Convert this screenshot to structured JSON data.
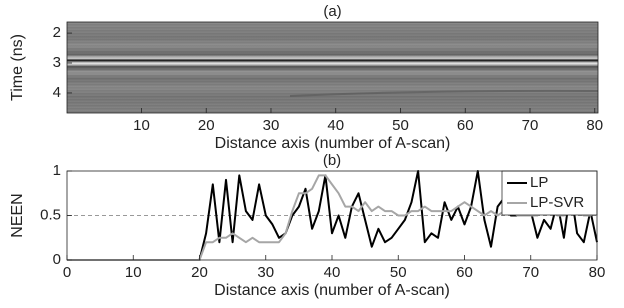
{
  "chart_data": [
    {
      "type": "image",
      "title": "(a)",
      "ylabel": "Time (ns)",
      "xlabel": "Distance axis (number of A-scan)",
      "xlim": [
        -1.5,
        80.5
      ],
      "ylim": [
        1.63,
        4.67
      ],
      "xticks": [
        10,
        20,
        30,
        40,
        50,
        60,
        70,
        80
      ],
      "yticks": [
        2,
        3,
        4
      ]
    },
    {
      "type": "line",
      "title": "(b)",
      "ylabel": "NEEN",
      "xlabel": "Distance axis (number of A-scan)",
      "xlim": [
        0,
        80
      ],
      "ylim": [
        0,
        1
      ],
      "xticks": [
        0,
        10,
        20,
        30,
        40,
        50,
        60,
        70,
        80
      ],
      "yticks": [
        0,
        0.5,
        1
      ],
      "hline": 0.5,
      "legend": "upper right",
      "x": [
        0,
        1,
        2,
        3,
        4,
        5,
        6,
        7,
        8,
        9,
        10,
        11,
        12,
        13,
        14,
        15,
        16,
        17,
        18,
        19,
        20,
        21,
        22,
        23,
        24,
        25,
        26,
        27,
        28,
        29,
        30,
        31,
        32,
        33,
        34,
        35,
        36,
        37,
        38,
        39,
        40,
        41,
        42,
        43,
        44,
        45,
        46,
        47,
        48,
        49,
        50,
        51,
        52,
        53,
        54,
        55,
        56,
        57,
        58,
        59,
        60,
        61,
        62,
        63,
        64,
        65,
        66,
        67,
        68,
        69,
        70,
        71,
        72,
        73,
        74,
        75,
        76,
        77,
        78,
        79,
        80
      ],
      "series": [
        {
          "name": "LP",
          "color": "#000000",
          "values": [
            0,
            0,
            0,
            0,
            0,
            0,
            0,
            0,
            0,
            0,
            0,
            0,
            0,
            0,
            0,
            0,
            0,
            0,
            0,
            0,
            0,
            0.3,
            0.85,
            0.2,
            0.9,
            0.2,
            0.95,
            0.55,
            0.45,
            0.85,
            0.5,
            0.4,
            0.25,
            0.3,
            0.5,
            0.6,
            0.8,
            0.35,
            0.55,
            0.95,
            0.3,
            0.5,
            0.25,
            0.6,
            0.75,
            0.45,
            0.15,
            0.35,
            0.2,
            0.25,
            0.35,
            0.45,
            0.65,
            1.0,
            0.2,
            0.3,
            0.25,
            0.65,
            0.45,
            0.6,
            0.4,
            0.6,
            1.0,
            0.45,
            0.15,
            0.6,
            0.7,
            0.5,
            0.5,
            0.65,
            0.55,
            0.25,
            0.45,
            0.35,
            0.65,
            0.25,
            0.8,
            0.3,
            0.2,
            0.55,
            0.2
          ]
        },
        {
          "name": "LP-SVR",
          "color": "#a6a6a6",
          "values": [
            0,
            0,
            0,
            0,
            0,
            0,
            0,
            0,
            0,
            0,
            0,
            0,
            0,
            0,
            0,
            0,
            0,
            0,
            0,
            0,
            0,
            0.2,
            0.2,
            0.25,
            0.25,
            0.3,
            0.25,
            0.2,
            0.25,
            0.2,
            0.2,
            0.2,
            0.2,
            0.3,
            0.55,
            0.75,
            0.75,
            0.8,
            0.95,
            0.95,
            0.85,
            0.75,
            0.6,
            0.6,
            0.55,
            0.65,
            0.55,
            0.6,
            0.55,
            0.55,
            0.5,
            0.5,
            0.55,
            0.55,
            0.6,
            0.55,
            0.55,
            0.55,
            0.55,
            0.6,
            0.65,
            0.6,
            0.55,
            0.5,
            0.55,
            0.5,
            0.55,
            0.55,
            0.5,
            0.5,
            0.5,
            0.5,
            0.55,
            0.55,
            0.5,
            0.5,
            0.55,
            0.55,
            0.5,
            0.5,
            0.55
          ]
        }
      ]
    }
  ]
}
